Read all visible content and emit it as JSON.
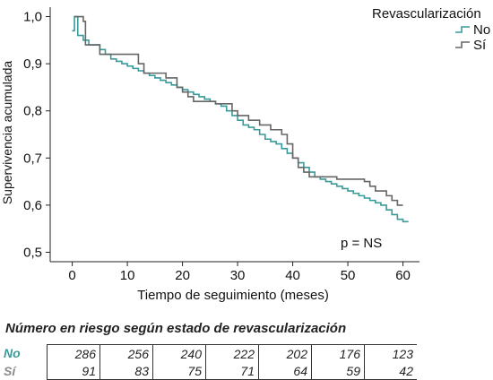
{
  "chart_data": {
    "type": "line",
    "xlabel": "Tiempo de seguimiento (meses)",
    "ylabel": "Supervivencia acumulada",
    "xlim": [
      -4,
      63
    ],
    "ylim": [
      0.48,
      1.02
    ],
    "x_ticks": [
      0,
      10,
      20,
      30,
      40,
      50,
      60
    ],
    "x_tick_labels": [
      "0",
      "10",
      "20",
      "30",
      "40",
      "50",
      "60"
    ],
    "y_ticks": [
      0.5,
      0.6,
      0.7,
      0.8,
      0.9,
      1.0
    ],
    "y_tick_labels": [
      "0,5",
      "0,6",
      "0,7",
      "0,8",
      "0,9",
      "1,0"
    ],
    "legend_title": "Revascularización",
    "legend_position": "top-right",
    "annotation": "p = NS",
    "series": [
      {
        "name": "No",
        "color": "#3a9a9a",
        "steps": [
          [
            0,
            0.97
          ],
          [
            0.4,
            1.0
          ],
          [
            1,
            0.96
          ],
          [
            2,
            0.95
          ],
          [
            3,
            0.94
          ],
          [
            5,
            0.93
          ],
          [
            6,
            0.92
          ],
          [
            7,
            0.91
          ],
          [
            8,
            0.905
          ],
          [
            9,
            0.9
          ],
          [
            10,
            0.895
          ],
          [
            11,
            0.89
          ],
          [
            12,
            0.885
          ],
          [
            13,
            0.88
          ],
          [
            14,
            0.875
          ],
          [
            15,
            0.87
          ],
          [
            16,
            0.865
          ],
          [
            17,
            0.86
          ],
          [
            18,
            0.855
          ],
          [
            19,
            0.85
          ],
          [
            20,
            0.845
          ],
          [
            21,
            0.84
          ],
          [
            22,
            0.835
          ],
          [
            23,
            0.83
          ],
          [
            24,
            0.825
          ],
          [
            25,
            0.82
          ],
          [
            26,
            0.815
          ],
          [
            27,
            0.81
          ],
          [
            28,
            0.8
          ],
          [
            29,
            0.79
          ],
          [
            30,
            0.78
          ],
          [
            31,
            0.77
          ],
          [
            32,
            0.765
          ],
          [
            33,
            0.76
          ],
          [
            34,
            0.75
          ],
          [
            35,
            0.74
          ],
          [
            36,
            0.735
          ],
          [
            37,
            0.73
          ],
          [
            38,
            0.72
          ],
          [
            39,
            0.71
          ],
          [
            40,
            0.7
          ],
          [
            41,
            0.69
          ],
          [
            42,
            0.68
          ],
          [
            43,
            0.67
          ],
          [
            44,
            0.66
          ],
          [
            45,
            0.655
          ],
          [
            46,
            0.65
          ],
          [
            47,
            0.645
          ],
          [
            48,
            0.64
          ],
          [
            49,
            0.635
          ],
          [
            50,
            0.63
          ],
          [
            51,
            0.625
          ],
          [
            52,
            0.62
          ],
          [
            53,
            0.615
          ],
          [
            54,
            0.61
          ],
          [
            55,
            0.605
          ],
          [
            56,
            0.6
          ],
          [
            57,
            0.59
          ],
          [
            58,
            0.58
          ],
          [
            59,
            0.57
          ],
          [
            60,
            0.565
          ],
          [
            61,
            0.565
          ]
        ]
      },
      {
        "name": "Sí",
        "color": "#666666",
        "steps": [
          [
            0.4,
            1.0
          ],
          [
            2,
            0.99
          ],
          [
            2.4,
            0.94
          ],
          [
            5,
            0.92
          ],
          [
            12,
            0.9
          ],
          [
            13,
            0.88
          ],
          [
            17,
            0.87
          ],
          [
            19,
            0.85
          ],
          [
            20,
            0.84
          ],
          [
            21,
            0.83
          ],
          [
            22,
            0.82
          ],
          [
            26,
            0.815
          ],
          [
            29,
            0.8
          ],
          [
            30,
            0.79
          ],
          [
            32,
            0.78
          ],
          [
            34,
            0.77
          ],
          [
            36,
            0.76
          ],
          [
            38,
            0.75
          ],
          [
            39,
            0.73
          ],
          [
            40,
            0.7
          ],
          [
            41,
            0.68
          ],
          [
            42,
            0.67
          ],
          [
            43,
            0.66
          ],
          [
            47,
            0.66
          ],
          [
            48,
            0.655
          ],
          [
            53,
            0.65
          ],
          [
            54,
            0.64
          ],
          [
            55,
            0.63
          ],
          [
            57,
            0.62
          ],
          [
            58,
            0.61
          ],
          [
            59,
            0.6
          ],
          [
            60,
            0.6
          ]
        ]
      }
    ]
  },
  "risk_table": {
    "title": "Número en riesgo según estado de revascularización",
    "rows": [
      {
        "label": "No",
        "values": [
          "286",
          "256",
          "240",
          "222",
          "202",
          "176",
          "123"
        ]
      },
      {
        "label": "Sí",
        "values": [
          "91",
          "83",
          "75",
          "71",
          "64",
          "59",
          "42"
        ]
      }
    ]
  }
}
